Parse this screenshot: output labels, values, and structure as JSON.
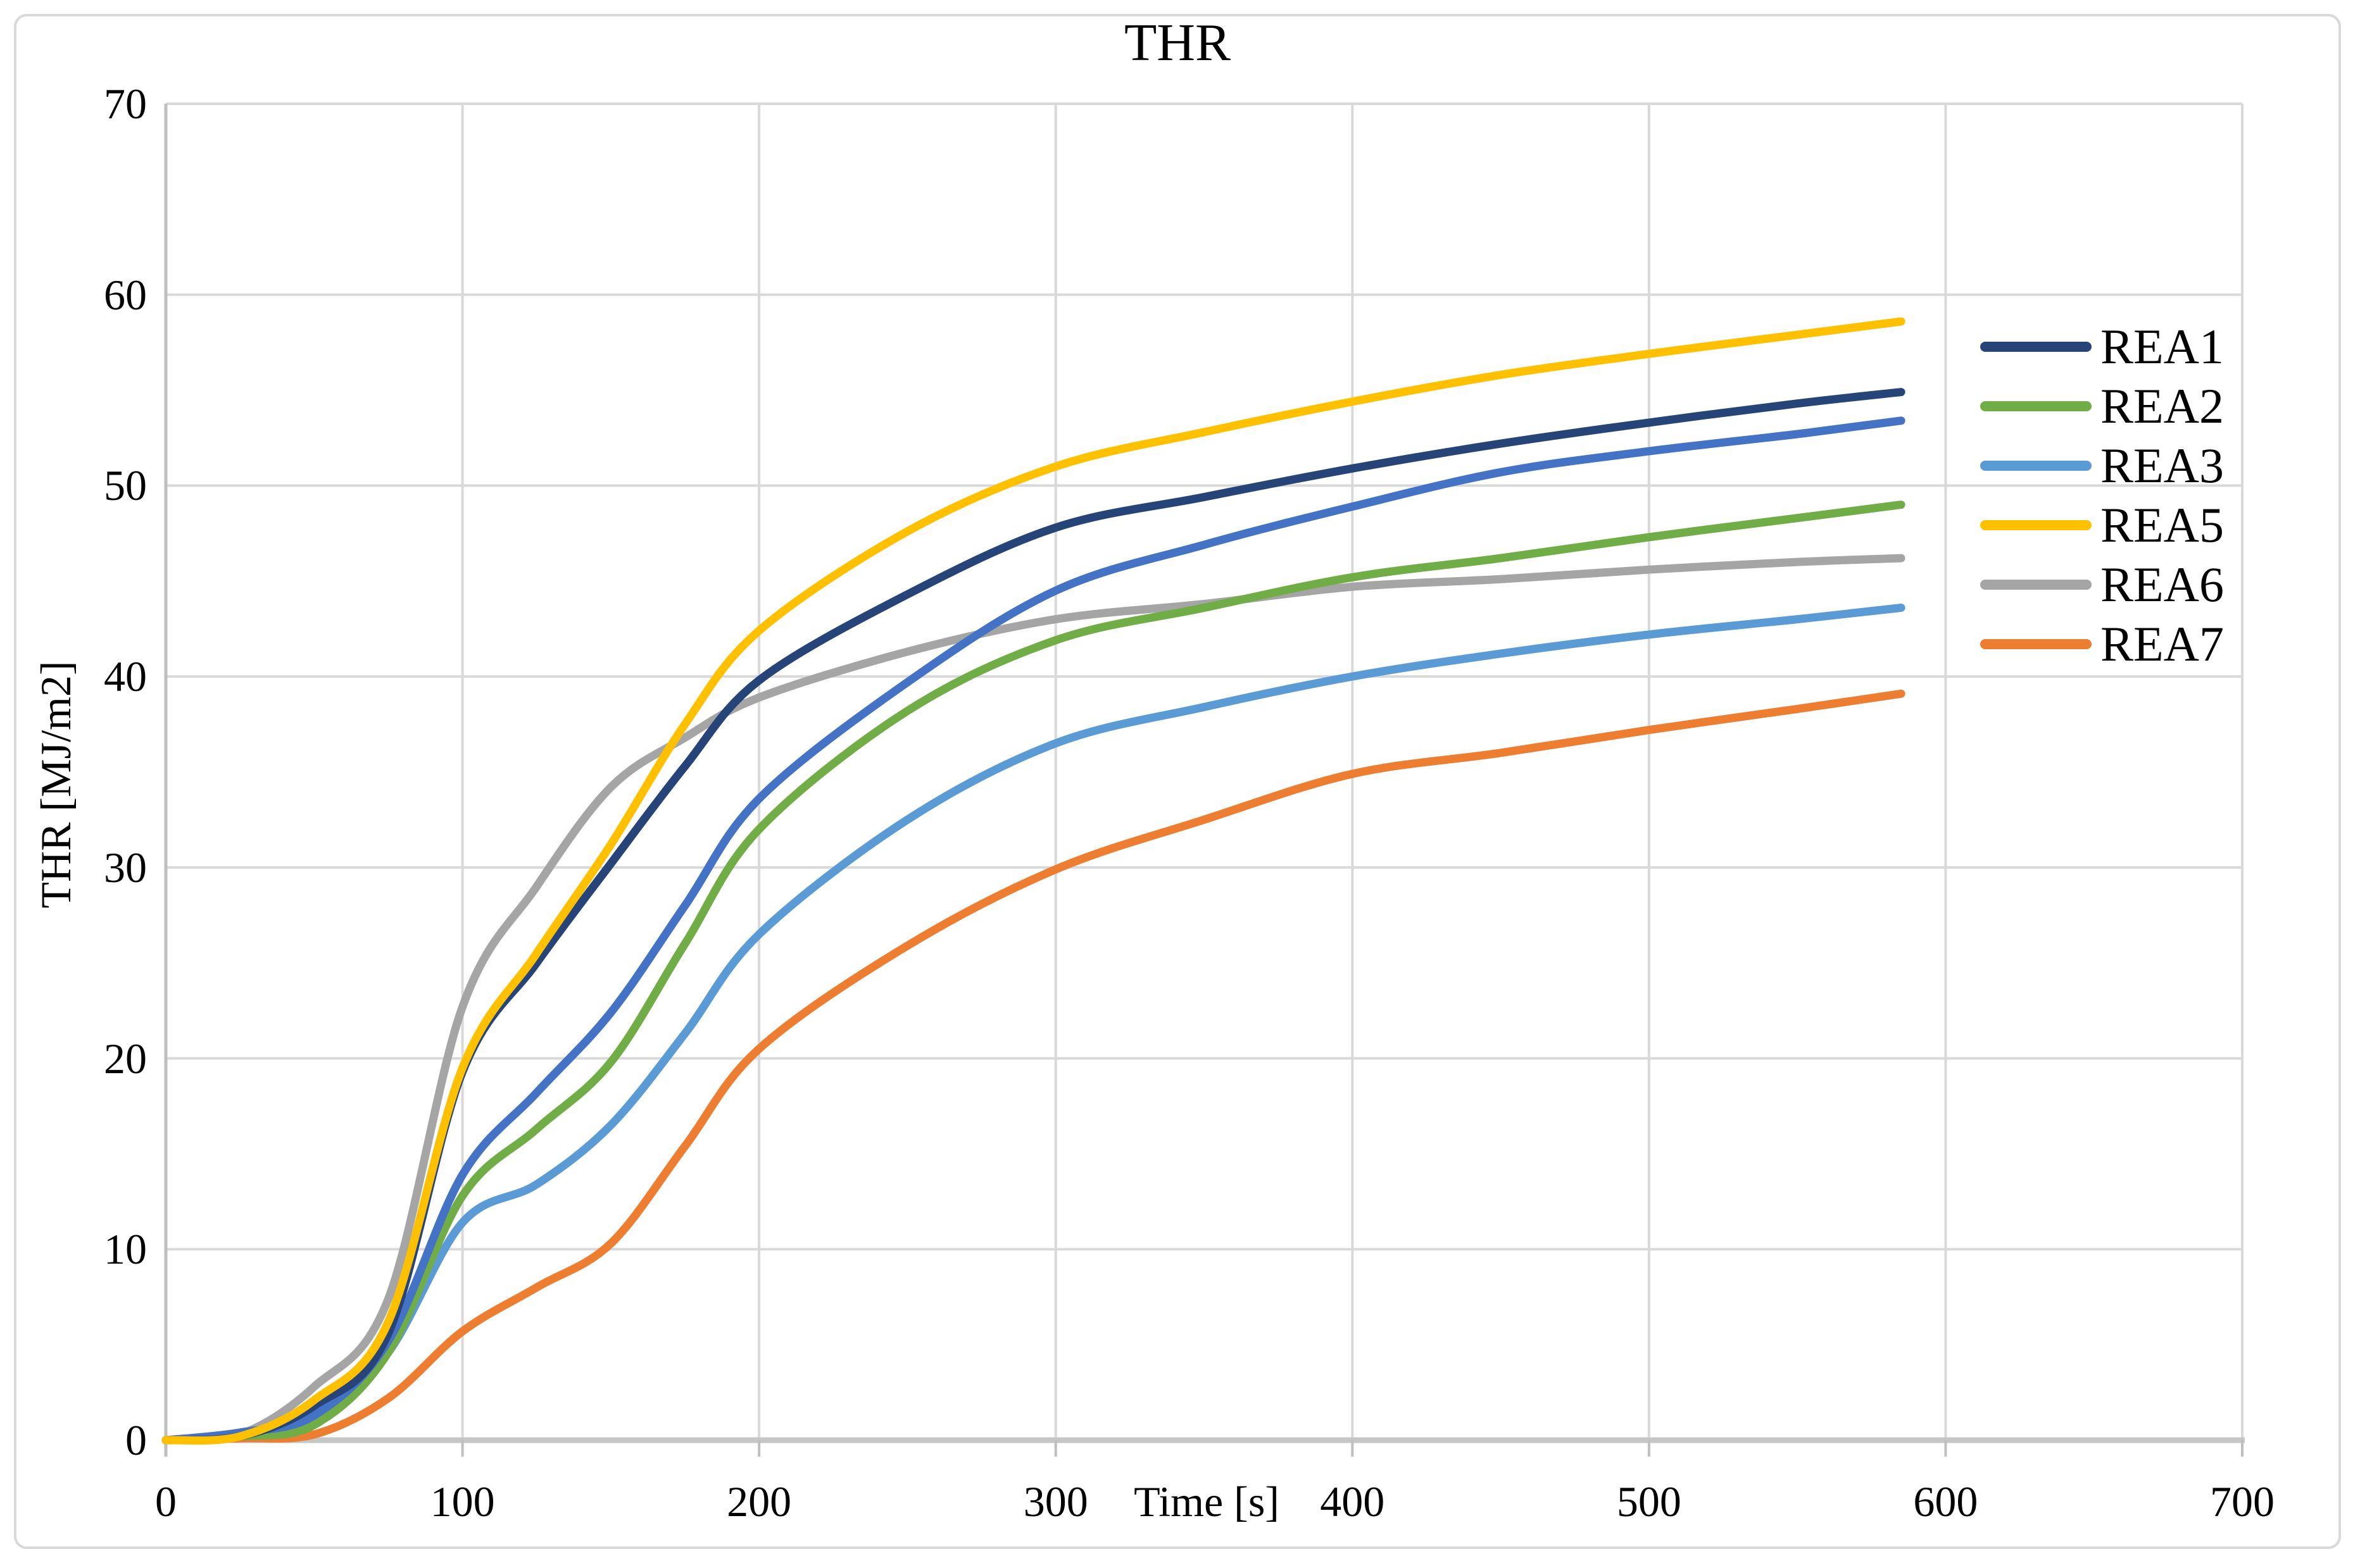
{
  "figure": {
    "title": "THR",
    "x_axis_title": "Time [s]",
    "y_axis_title": "THR [MJ/m2]"
  },
  "colors": {
    "gridline": "#d9d9d9",
    "y_axis_line": "#bfbfbf",
    "x_axis_line": "#c6c6c6",
    "tick_mark": "#bfbfbf",
    "text": "#000000",
    "border": "#d9d9d9",
    "background": "#ffffff"
  },
  "chart_data": {
    "type": "line",
    "title": "THR",
    "xlabel": "Time [s]",
    "ylabel": "THR [MJ/m2]",
    "xlim": [
      0,
      700
    ],
    "ylim": [
      0,
      70
    ],
    "x_ticks": [
      0,
      100,
      200,
      300,
      400,
      500,
      600,
      700
    ],
    "y_ticks": [
      0,
      10,
      20,
      30,
      40,
      50,
      60,
      70
    ],
    "grid": true,
    "legend_position": "inside-right",
    "x": [
      0,
      25,
      50,
      75,
      100,
      125,
      150,
      175,
      200,
      250,
      300,
      350,
      400,
      450,
      500,
      550,
      585
    ],
    "series": [
      {
        "name": "REA1",
        "color": "#264478",
        "in_legend": true,
        "z": 6,
        "values": [
          0,
          0.2,
          1.8,
          5.6,
          19.3,
          25.0,
          30.2,
          35.3,
          39.8,
          44.3,
          47.8,
          49.4,
          50.9,
          52.2,
          53.3,
          54.3,
          54.9
        ]
      },
      {
        "name": "REA2",
        "color": "#70ad47",
        "in_legend": true,
        "z": 4,
        "values": [
          0,
          0.2,
          0.8,
          4.6,
          12.8,
          16.3,
          19.8,
          26.0,
          32.0,
          38.2,
          41.9,
          43.6,
          45.2,
          46.2,
          47.3,
          48.3,
          49.0
        ]
      },
      {
        "name": "REA3",
        "color": "#5b9bd5",
        "in_legend": true,
        "z": 3,
        "values": [
          0,
          0.2,
          0.9,
          4.6,
          11.4,
          13.4,
          16.5,
          21.3,
          26.5,
          32.5,
          36.5,
          38.4,
          40.0,
          41.2,
          42.2,
          43.0,
          43.6
        ]
      },
      {
        "name": "REA5",
        "color": "#ffc000",
        "in_legend": true,
        "z": 7,
        "values": [
          0,
          0.2,
          2.1,
          6.2,
          19.5,
          25.5,
          31.2,
          37.5,
          42.4,
          47.6,
          51.0,
          52.8,
          54.4,
          55.8,
          56.9,
          57.9,
          58.6
        ]
      },
      {
        "name": "REA6",
        "color": "#a5a5a5",
        "in_legend": true,
        "z": 2,
        "values": [
          0,
          0.3,
          2.8,
          7.4,
          22.7,
          29.0,
          34.2,
          36.8,
          38.9,
          41.3,
          43.0,
          43.8,
          44.7,
          45.1,
          45.6,
          46.0,
          46.2
        ]
      },
      {
        "name": "REA7",
        "color": "#ed7d31",
        "in_legend": true,
        "z": 1,
        "values": [
          0,
          0.1,
          0.3,
          2.2,
          5.7,
          8.0,
          10.3,
          15.4,
          20.5,
          25.9,
          29.9,
          32.5,
          34.9,
          36.0,
          37.2,
          38.3,
          39.1
        ]
      },
      {
        "name": "",
        "color": "#4472c4",
        "in_legend": false,
        "z": 5,
        "values": [
          0,
          0.4,
          1.3,
          5.2,
          13.9,
          18.2,
          22.4,
          28.0,
          33.6,
          39.7,
          44.5,
          46.9,
          48.9,
          50.7,
          51.8,
          52.7,
          53.4
        ]
      }
    ]
  }
}
